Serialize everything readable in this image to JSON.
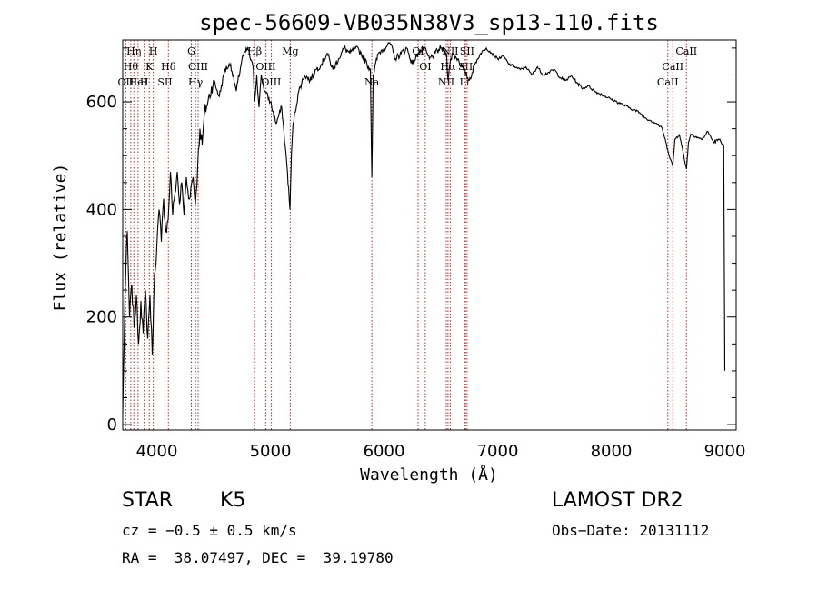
{
  "chart_data": {
    "type": "line",
    "title": "spec-56609-VB035N38V3_sp13-110.fits",
    "xlabel": "Wavelength (Å)",
    "ylabel": "Flux (relative)",
    "xlim": [
      3700,
      9100
    ],
    "ylim": [
      -10,
      715
    ],
    "x_ticks": [
      4000,
      5000,
      6000,
      7000,
      8000,
      9000
    ],
    "y_ticks": [
      0,
      200,
      400,
      600
    ],
    "x_minor_step": 200,
    "y_minor_step": 50,
    "line_color": "#000000",
    "marker_color": "#b03030",
    "spectrum": {
      "x": [
        3700,
        3720,
        3740,
        3760,
        3780,
        3800,
        3820,
        3840,
        3860,
        3880,
        3900,
        3920,
        3940,
        3960,
        3980,
        4000,
        4020,
        4040,
        4060,
        4080,
        4100,
        4120,
        4140,
        4160,
        4180,
        4200,
        4220,
        4240,
        4260,
        4280,
        4300,
        4320,
        4340,
        4360,
        4380,
        4400,
        4420,
        4450,
        4500,
        4550,
        4600,
        4650,
        4700,
        4750,
        4800,
        4850,
        4861,
        4880,
        4900,
        4920,
        4950,
        5000,
        5050,
        5100,
        5150,
        5172,
        5185,
        5200,
        5250,
        5300,
        5350,
        5400,
        5450,
        5500,
        5550,
        5600,
        5650,
        5700,
        5750,
        5800,
        5850,
        5880,
        5893,
        5905,
        5950,
        6000,
        6050,
        6100,
        6150,
        6200,
        6250,
        6300,
        6350,
        6400,
        6450,
        6500,
        6550,
        6563,
        6580,
        6600,
        6650,
        6700,
        6750,
        6800,
        6850,
        6900,
        6950,
        7000,
        7050,
        7100,
        7150,
        7200,
        7250,
        7300,
        7350,
        7400,
        7450,
        7500,
        7550,
        7600,
        7650,
        7700,
        7750,
        7800,
        7850,
        7900,
        7950,
        8000,
        8050,
        8100,
        8150,
        8200,
        8250,
        8300,
        8350,
        8400,
        8450,
        8498,
        8542,
        8560,
        8600,
        8662,
        8680,
        8700,
        8750,
        8800,
        8850,
        8900,
        8950,
        8990,
        9000
      ],
      "y": [
        20,
        240,
        360,
        200,
        260,
        180,
        240,
        150,
        230,
        170,
        250,
        160,
        240,
        130,
        280,
        330,
        400,
        340,
        420,
        360,
        380,
        470,
        390,
        430,
        470,
        410,
        450,
        390,
        460,
        420,
        440,
        460,
        410,
        480,
        550,
        520,
        580,
        600,
        640,
        610,
        660,
        670,
        620,
        680,
        700,
        660,
        600,
        650,
        590,
        650,
        620,
        600,
        560,
        590,
        470,
        400,
        500,
        560,
        620,
        650,
        640,
        660,
        670,
        690,
        660,
        680,
        700,
        690,
        700,
        690,
        670,
        660,
        460,
        650,
        690,
        700,
        710,
        680,
        690,
        700,
        670,
        690,
        700,
        680,
        690,
        700,
        690,
        640,
        670,
        690,
        680,
        660,
        640,
        670,
        690,
        700,
        690,
        680,
        685,
        670,
        665,
        660,
        665,
        650,
        665,
        650,
        655,
        660,
        645,
        640,
        648,
        635,
        625,
        630,
        620,
        615,
        610,
        605,
        600,
        595,
        590,
        585,
        580,
        570,
        565,
        560,
        550,
        510,
        480,
        530,
        540,
        475,
        525,
        540,
        535,
        530,
        545,
        525,
        530,
        520,
        100
      ]
    },
    "line_markers": [
      {
        "wave": 3727,
        "label": "OII",
        "row": 3
      },
      {
        "wave": 3771,
        "label": "Hθ",
        "row": 2
      },
      {
        "wave": 3798,
        "label": "Hη",
        "row": 1
      },
      {
        "wave": 3835,
        "label": "HeI",
        "row": 3
      },
      {
        "wave": 3889,
        "label": "H",
        "row": 3
      },
      {
        "wave": 3934,
        "label": "K",
        "row": 2
      },
      {
        "wave": 3969,
        "label": "H",
        "row": 1
      },
      {
        "wave": 4072,
        "label": "SII",
        "row": 3
      },
      {
        "wave": 4102,
        "label": "Hδ",
        "row": 2
      },
      {
        "wave": 4304,
        "label": "G",
        "row": 1
      },
      {
        "wave": 4341,
        "label": "Hγ",
        "row": 3
      },
      {
        "wave": 4364,
        "label": "OIII",
        "row": 2
      },
      {
        "wave": 4861,
        "label": "Hβ",
        "row": 1
      },
      {
        "wave": 4959,
        "label": "OIII",
        "row": 2
      },
      {
        "wave": 5007,
        "label": "OIII",
        "row": 3
      },
      {
        "wave": 5175,
        "label": "Mg",
        "row": 1
      },
      {
        "wave": 5893,
        "label": "Na",
        "row": 3
      },
      {
        "wave": 6300,
        "label": "OI",
        "row": 1
      },
      {
        "wave": 6363,
        "label": "OI",
        "row": 2
      },
      {
        "wave": 6548,
        "label": "NII",
        "row": 3
      },
      {
        "wave": 6563,
        "label": "Hα",
        "row": 2
      },
      {
        "wave": 6583,
        "label": "NII",
        "row": 1
      },
      {
        "wave": 6708,
        "label": "Li",
        "row": 3
      },
      {
        "wave": 6717,
        "label": "SII",
        "row": 2
      },
      {
        "wave": 6731,
        "label": "SII",
        "row": 1
      },
      {
        "wave": 8498,
        "label": "CaII",
        "row": 3
      },
      {
        "wave": 8542,
        "label": "CaII",
        "row": 2
      },
      {
        "wave": 8662,
        "label": "CaII",
        "row": 1
      }
    ]
  },
  "info": {
    "class": "STAR",
    "subclass": "K5",
    "survey": "LAMOST DR2",
    "cz": "cz = −0.5 ± 0.5 km/s",
    "obsdate": "Obs−Date: 20131112",
    "radec": "RA =  38.07497, DEC =  39.19780"
  }
}
